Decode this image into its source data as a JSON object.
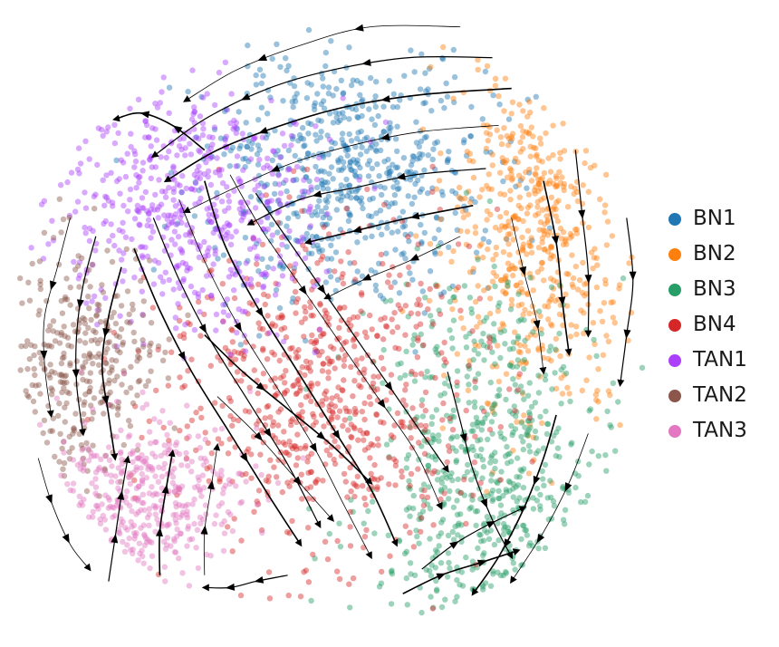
{
  "chart_data": {
    "type": "scatter",
    "subtype": "embedding scatter with RNA-velocity streamlines",
    "title": "",
    "xlabel": "",
    "ylabel": "",
    "axes_visible": false,
    "grid": false,
    "legend_placement": "right",
    "series": [
      {
        "name": "BN1",
        "color": "#1f77b4",
        "center": [
          0.52,
          0.25
        ],
        "spread": [
          0.11,
          0.1
        ],
        "n": 650
      },
      {
        "name": "BN2",
        "color": "#ff7f0e",
        "center": [
          0.82,
          0.35
        ],
        "spread": [
          0.07,
          0.15
        ],
        "n": 520
      },
      {
        "name": "BN3",
        "color": "#279e68",
        "center": [
          0.74,
          0.76
        ],
        "spread": [
          0.09,
          0.16
        ],
        "n": 620
      },
      {
        "name": "BN4",
        "color": "#d62728",
        "center": [
          0.48,
          0.61
        ],
        "spread": [
          0.12,
          0.13
        ],
        "n": 720
      },
      {
        "name": "TAN1",
        "color": "#aa40fc",
        "center": [
          0.28,
          0.31
        ],
        "spread": [
          0.1,
          0.1
        ],
        "n": 560
      },
      {
        "name": "TAN2",
        "color": "#8c564b",
        "center": [
          0.11,
          0.57
        ],
        "spread": [
          0.06,
          0.1
        ],
        "n": 330
      },
      {
        "name": "TAN3",
        "color": "#e377c2",
        "center": [
          0.19,
          0.79
        ],
        "spread": [
          0.08,
          0.07
        ],
        "n": 380
      }
    ],
    "streamlines": [
      [
        [
          0.7,
          0.02
        ],
        [
          0.56,
          0.02
        ],
        [
          0.45,
          0.05
        ],
        [
          0.35,
          0.09
        ],
        [
          0.27,
          0.14
        ]
      ],
      [
        [
          0.75,
          0.07
        ],
        [
          0.62,
          0.07
        ],
        [
          0.5,
          0.09
        ],
        [
          0.4,
          0.12
        ],
        [
          0.3,
          0.17
        ],
        [
          0.22,
          0.23
        ]
      ],
      [
        [
          0.78,
          0.12
        ],
        [
          0.64,
          0.13
        ],
        [
          0.52,
          0.15
        ],
        [
          0.42,
          0.18
        ],
        [
          0.32,
          0.22
        ],
        [
          0.24,
          0.27
        ]
      ],
      [
        [
          0.76,
          0.18
        ],
        [
          0.64,
          0.19
        ],
        [
          0.54,
          0.21
        ],
        [
          0.44,
          0.24
        ],
        [
          0.35,
          0.28
        ],
        [
          0.27,
          0.32
        ]
      ],
      [
        [
          0.74,
          0.25
        ],
        [
          0.63,
          0.26
        ],
        [
          0.54,
          0.28
        ],
        [
          0.45,
          0.3
        ],
        [
          0.37,
          0.34
        ]
      ],
      [
        [
          0.72,
          0.31
        ],
        [
          0.62,
          0.33
        ],
        [
          0.54,
          0.35
        ],
        [
          0.46,
          0.37
        ]
      ],
      [
        [
          0.7,
          0.36
        ],
        [
          0.62,
          0.4
        ],
        [
          0.55,
          0.43
        ],
        [
          0.49,
          0.46
        ]
      ],
      [
        [
          0.88,
          0.22
        ],
        [
          0.89,
          0.32
        ],
        [
          0.9,
          0.42
        ],
        [
          0.9,
          0.52
        ]
      ],
      [
        [
          0.83,
          0.27
        ],
        [
          0.85,
          0.37
        ],
        [
          0.86,
          0.47
        ],
        [
          0.87,
          0.55
        ]
      ],
      [
        [
          0.78,
          0.33
        ],
        [
          0.8,
          0.42
        ],
        [
          0.82,
          0.5
        ],
        [
          0.83,
          0.58
        ]
      ],
      [
        [
          0.96,
          0.33
        ],
        [
          0.97,
          0.43
        ],
        [
          0.96,
          0.52
        ],
        [
          0.95,
          0.6
        ]
      ],
      [
        [
          0.3,
          0.27
        ],
        [
          0.33,
          0.37
        ],
        [
          0.38,
          0.47
        ],
        [
          0.44,
          0.57
        ],
        [
          0.5,
          0.67
        ],
        [
          0.56,
          0.77
        ],
        [
          0.6,
          0.86
        ]
      ],
      [
        [
          0.26,
          0.3
        ],
        [
          0.3,
          0.4
        ],
        [
          0.35,
          0.5
        ],
        [
          0.41,
          0.6
        ],
        [
          0.47,
          0.7
        ],
        [
          0.52,
          0.8
        ],
        [
          0.56,
          0.88
        ]
      ],
      [
        [
          0.22,
          0.33
        ],
        [
          0.26,
          0.43
        ],
        [
          0.31,
          0.53
        ],
        [
          0.37,
          0.63
        ],
        [
          0.43,
          0.73
        ],
        [
          0.48,
          0.83
        ]
      ],
      [
        [
          0.19,
          0.38
        ],
        [
          0.23,
          0.48
        ],
        [
          0.28,
          0.58
        ],
        [
          0.34,
          0.68
        ],
        [
          0.4,
          0.78
        ],
        [
          0.45,
          0.86
        ]
      ],
      [
        [
          0.34,
          0.26
        ],
        [
          0.39,
          0.35
        ],
        [
          0.45,
          0.44
        ],
        [
          0.51,
          0.53
        ],
        [
          0.57,
          0.62
        ],
        [
          0.63,
          0.71
        ],
        [
          0.67,
          0.8
        ]
      ],
      [
        [
          0.38,
          0.29
        ],
        [
          0.44,
          0.38
        ],
        [
          0.5,
          0.47
        ],
        [
          0.56,
          0.56
        ],
        [
          0.62,
          0.65
        ],
        [
          0.68,
          0.74
        ]
      ],
      [
        [
          0.3,
          0.52
        ],
        [
          0.36,
          0.58
        ],
        [
          0.43,
          0.64
        ],
        [
          0.5,
          0.7
        ],
        [
          0.56,
          0.76
        ]
      ],
      [
        [
          0.32,
          0.62
        ],
        [
          0.38,
          0.68
        ],
        [
          0.44,
          0.75
        ],
        [
          0.5,
          0.82
        ]
      ],
      [
        [
          0.68,
          0.58
        ],
        [
          0.7,
          0.66
        ],
        [
          0.72,
          0.74
        ],
        [
          0.75,
          0.82
        ],
        [
          0.78,
          0.88
        ]
      ],
      [
        [
          0.85,
          0.65
        ],
        [
          0.83,
          0.72
        ],
        [
          0.8,
          0.8
        ],
        [
          0.76,
          0.88
        ],
        [
          0.72,
          0.94
        ]
      ],
      [
        [
          0.9,
          0.68
        ],
        [
          0.87,
          0.76
        ],
        [
          0.83,
          0.84
        ],
        [
          0.78,
          0.92
        ]
      ],
      [
        [
          0.64,
          0.9
        ],
        [
          0.69,
          0.86
        ],
        [
          0.74,
          0.83
        ],
        [
          0.8,
          0.8
        ]
      ],
      [
        [
          0.61,
          0.94
        ],
        [
          0.67,
          0.91
        ],
        [
          0.73,
          0.89
        ],
        [
          0.79,
          0.87
        ]
      ],
      [
        [
          0.09,
          0.33
        ],
        [
          0.07,
          0.41
        ],
        [
          0.05,
          0.49
        ],
        [
          0.05,
          0.57
        ],
        [
          0.06,
          0.65
        ]
      ],
      [
        [
          0.13,
          0.36
        ],
        [
          0.11,
          0.44
        ],
        [
          0.1,
          0.52
        ],
        [
          0.1,
          0.6
        ],
        [
          0.11,
          0.68
        ]
      ],
      [
        [
          0.17,
          0.41
        ],
        [
          0.15,
          0.49
        ],
        [
          0.14,
          0.57
        ],
        [
          0.15,
          0.65
        ],
        [
          0.16,
          0.72
        ]
      ],
      [
        [
          0.04,
          0.72
        ],
        [
          0.06,
          0.79
        ],
        [
          0.09,
          0.86
        ],
        [
          0.12,
          0.9
        ]
      ],
      [
        [
          0.15,
          0.92
        ],
        [
          0.16,
          0.85
        ],
        [
          0.17,
          0.78
        ],
        [
          0.18,
          0.72
        ]
      ],
      [
        [
          0.23,
          0.91
        ],
        [
          0.23,
          0.84
        ],
        [
          0.24,
          0.77
        ],
        [
          0.25,
          0.71
        ]
      ],
      [
        [
          0.3,
          0.91
        ],
        [
          0.3,
          0.84
        ],
        [
          0.31,
          0.77
        ],
        [
          0.32,
          0.7
        ]
      ],
      [
        [
          0.43,
          0.91
        ],
        [
          0.38,
          0.92
        ],
        [
          0.34,
          0.93
        ],
        [
          0.3,
          0.93
        ]
      ],
      [
        [
          0.3,
          0.22
        ],
        [
          0.25,
          0.18
        ],
        [
          0.2,
          0.16
        ],
        [
          0.16,
          0.17
        ]
      ]
    ]
  },
  "legend": {
    "items": [
      {
        "label": "BN1",
        "color": "#1f77b4"
      },
      {
        "label": "BN2",
        "color": "#ff7f0e"
      },
      {
        "label": "BN3",
        "color": "#279e68"
      },
      {
        "label": "BN4",
        "color": "#d62728"
      },
      {
        "label": "TAN1",
        "color": "#aa40fc"
      },
      {
        "label": "TAN2",
        "color": "#8c564b"
      },
      {
        "label": "TAN3",
        "color": "#e377c2"
      }
    ]
  }
}
